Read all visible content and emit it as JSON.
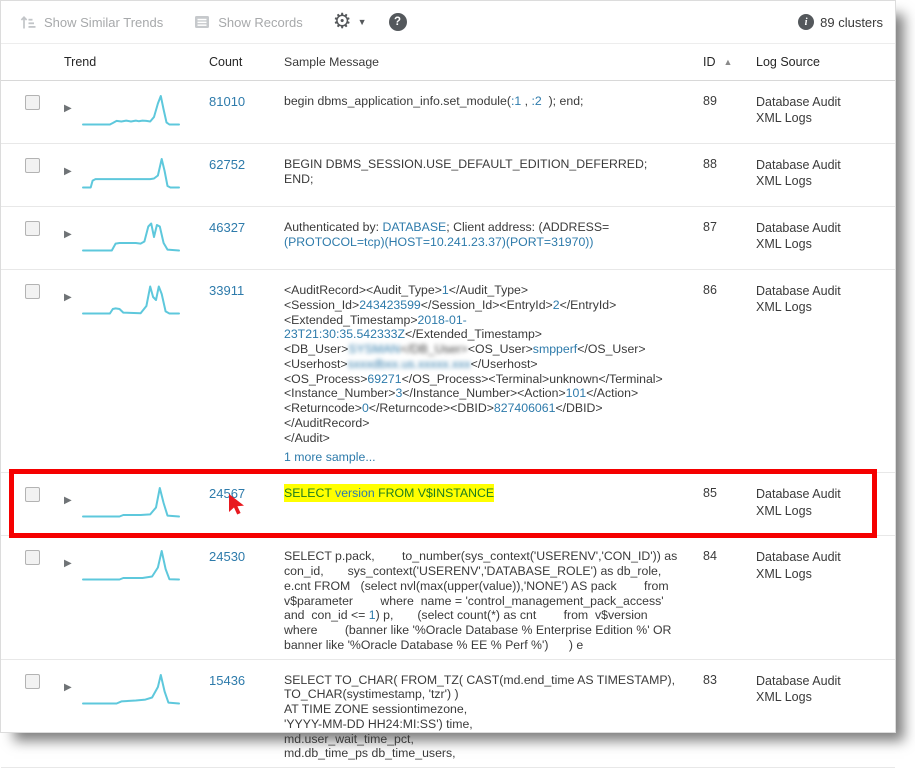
{
  "toolbar": {
    "show_similar_trends": "Show Similar Trends",
    "show_records": "Show Records"
  },
  "summary": {
    "clusters": "89 clusters"
  },
  "columns": {
    "trend": "Trend",
    "count": "Count",
    "sample_message": "Sample Message",
    "id": "ID",
    "log_source": "Log Source"
  },
  "icons": {
    "gear": "⚙",
    "caret_down": "▼",
    "help": "?",
    "info": "i",
    "expand": "▶",
    "sort_ascending": "▲"
  },
  "colors": {
    "link_blue": "#2e7bab",
    "sparkline": "#5ec8dc",
    "highlight_yellow": "#ffff00",
    "keyword_green": "#1e7d1e",
    "frame_red": "#f50000",
    "cursor_red": "#e8191f"
  },
  "rows": [
    {
      "id": "89",
      "count": "81010",
      "log_source": "Database Audit XML Logs",
      "trend": [
        [
          0,
          0.05
        ],
        [
          28,
          0.05
        ],
        [
          31,
          0.1
        ],
        [
          35,
          0.17
        ],
        [
          40,
          0.15
        ],
        [
          45,
          0.18
        ],
        [
          50,
          0.15
        ],
        [
          55,
          0.18
        ],
        [
          58,
          0.16
        ],
        [
          62,
          0.18
        ],
        [
          66,
          0.17
        ],
        [
          70,
          0.15
        ],
        [
          74,
          0.3
        ],
        [
          78,
          0.75
        ],
        [
          81,
          1.0
        ],
        [
          84,
          0.55
        ],
        [
          87,
          0.12
        ],
        [
          90,
          0.05
        ],
        [
          100,
          0.05
        ]
      ],
      "message": [
        {
          "t": "begin dbms_application_info.set_module("
        },
        {
          "t": ":1",
          "c": "v"
        },
        {
          "t": " , "
        },
        {
          "t": ":2",
          "c": "v"
        },
        {
          "t": "  ); end;"
        }
      ]
    },
    {
      "id": "88",
      "count": "62752",
      "log_source": "Database Audit XML Logs",
      "trend": [
        [
          0,
          0.05
        ],
        [
          8,
          0.05
        ],
        [
          10,
          0.28
        ],
        [
          13,
          0.33
        ],
        [
          70,
          0.33
        ],
        [
          74,
          0.35
        ],
        [
          78,
          0.45
        ],
        [
          82,
          1.0
        ],
        [
          85,
          0.6
        ],
        [
          88,
          0.1
        ],
        [
          91,
          0.05
        ],
        [
          100,
          0.05
        ]
      ],
      "message": [
        {
          "t": "BEGIN DBMS_SESSION.USE_DEFAULT_EDITION_DEFERRED;\nEND;"
        }
      ]
    },
    {
      "id": "87",
      "count": "46327",
      "log_source": "Database Audit XML Logs",
      "trend": [
        [
          0,
          0.05
        ],
        [
          30,
          0.05
        ],
        [
          34,
          0.28
        ],
        [
          38,
          0.3
        ],
        [
          55,
          0.3
        ],
        [
          60,
          0.28
        ],
        [
          64,
          0.35
        ],
        [
          68,
          0.85
        ],
        [
          71,
          0.95
        ],
        [
          74,
          0.5
        ],
        [
          77,
          0.9
        ],
        [
          80,
          0.85
        ],
        [
          84,
          0.3
        ],
        [
          88,
          0.08
        ],
        [
          100,
          0.05
        ]
      ],
      "message": [
        {
          "t": "Authenticated by: "
        },
        {
          "t": "DATABASE",
          "c": "v"
        },
        {
          "t": "; Client address: (ADDRESS=\n"
        },
        {
          "t": "(PROTOCOL=tcp)(HOST=10.241.23.37)(PORT=31970))",
          "c": "v"
        }
      ]
    },
    {
      "id": "86",
      "count": "33911",
      "log_source": "Database Audit XML Logs",
      "trend": [
        [
          0,
          0.05
        ],
        [
          28,
          0.05
        ],
        [
          31,
          0.2
        ],
        [
          34,
          0.22
        ],
        [
          38,
          0.2
        ],
        [
          42,
          0.08
        ],
        [
          60,
          0.06
        ],
        [
          66,
          0.3
        ],
        [
          70,
          0.95
        ],
        [
          73,
          0.6
        ],
        [
          76,
          0.5
        ],
        [
          79,
          0.95
        ],
        [
          82,
          0.7
        ],
        [
          86,
          0.12
        ],
        [
          90,
          0.05
        ],
        [
          100,
          0.05
        ]
      ],
      "more_link": "1 more sample...",
      "message": [
        {
          "t": "<AuditRecord><Audit_Type>"
        },
        {
          "t": "1",
          "c": "v"
        },
        {
          "t": "</Audit_Type>\n<Session_Id>"
        },
        {
          "t": "243423599",
          "c": "v"
        },
        {
          "t": "</Session_Id><EntryId>"
        },
        {
          "t": "2",
          "c": "v"
        },
        {
          "t": "</EntryId>\n<Extended_Timestamp>"
        },
        {
          "t": "2018-01-23T21:30:35.542333Z",
          "c": "v"
        },
        {
          "t": "</Extended_Timestamp>\n<DB_User>"
        },
        {
          "t": "SYSMAN",
          "c": "v blur"
        },
        {
          "t": "</DB_User>",
          "c": "blur"
        },
        {
          "t": "<OS_User>"
        },
        {
          "t": "smpperf",
          "c": "v"
        },
        {
          "t": "</OS_User>\n<Userhost>"
        },
        {
          "t": "sxxxdbxx.us.xxxxx.xxx",
          "c": "v blur"
        },
        {
          "t": "</Userhost>\n<OS_Process>"
        },
        {
          "t": "69271",
          "c": "v"
        },
        {
          "t": "</OS_Process><Terminal>unknown</Terminal>\n<Instance_Number>"
        },
        {
          "t": "3",
          "c": "v"
        },
        {
          "t": "</Instance_Number><Action>"
        },
        {
          "t": "101",
          "c": "v"
        },
        {
          "t": "</Action>\n<Returncode>"
        },
        {
          "t": "0",
          "c": "v"
        },
        {
          "t": "</Returncode><DBID>"
        },
        {
          "t": "827406061",
          "c": "v"
        },
        {
          "t": "</DBID>\n</AuditRecord>\n</Audit>"
        }
      ]
    },
    {
      "id": "85",
      "count": "24567",
      "log_source": "Database Audit XML Logs",
      "highlighted": true,
      "cursor": true,
      "trend": [
        [
          0,
          0.05
        ],
        [
          38,
          0.05
        ],
        [
          42,
          0.1
        ],
        [
          60,
          0.1
        ],
        [
          70,
          0.12
        ],
        [
          76,
          0.35
        ],
        [
          80,
          1.0
        ],
        [
          84,
          0.5
        ],
        [
          88,
          0.08
        ],
        [
          100,
          0.05
        ]
      ],
      "message": [
        {
          "t": "SELECT",
          "c": "k hl"
        },
        {
          "t": " ",
          "c": "hl"
        },
        {
          "t": "version",
          "c": "v hl"
        },
        {
          "t": " ",
          "c": "hl"
        },
        {
          "t": "FROM V$INSTANCE",
          "c": "k hl"
        }
      ]
    },
    {
      "id": "84",
      "count": "24530",
      "log_source": "Database Audit XML Logs",
      "trend": [
        [
          0,
          0.05
        ],
        [
          38,
          0.05
        ],
        [
          42,
          0.1
        ],
        [
          62,
          0.1
        ],
        [
          72,
          0.15
        ],
        [
          78,
          0.45
        ],
        [
          82,
          1.0
        ],
        [
          86,
          0.4
        ],
        [
          90,
          0.06
        ],
        [
          100,
          0.05
        ]
      ],
      "message": [
        {
          "t": "SELECT p.pack,        to_number(sys_context('USERENV','CON_ID')) as con_id,       sys_context('USERENV','DATABASE_ROLE') as db_role, e.cnt FROM   (select nvl(max(upper(value)),'NONE') AS pack        from v$parameter        where  name = 'control_management_pack_access' and  con_id <= "
        },
        {
          "t": "1",
          "c": "v"
        },
        {
          "t": ") p,       (select count(*) as cnt        from  v$version where        (banner like '%Oracle Database % Enterprise Edition %' OR banner like '%Oracle Database % EE % Perf %')      ) e"
        }
      ]
    },
    {
      "id": "83",
      "count": "15436",
      "log_source": "Database Audit XML Logs",
      "trend": [
        [
          0,
          0.05
        ],
        [
          35,
          0.05
        ],
        [
          40,
          0.12
        ],
        [
          55,
          0.15
        ],
        [
          65,
          0.18
        ],
        [
          72,
          0.25
        ],
        [
          78,
          0.6
        ],
        [
          81,
          1.0
        ],
        [
          85,
          0.45
        ],
        [
          89,
          0.08
        ],
        [
          100,
          0.05
        ]
      ],
      "message": [
        {
          "t": "SELECT TO_CHAR( FROM_TZ( CAST(md.end_time AS TIMESTAMP),\nTO_CHAR(systimestamp, 'tzr') )\nAT TIME ZONE sessiontimezone,\n'YYYY-MM-DD HH24:MI:SS') time,\nmd.user_wait_time_pct,\nmd.db_time_ps db_time_users,"
        }
      ]
    }
  ]
}
